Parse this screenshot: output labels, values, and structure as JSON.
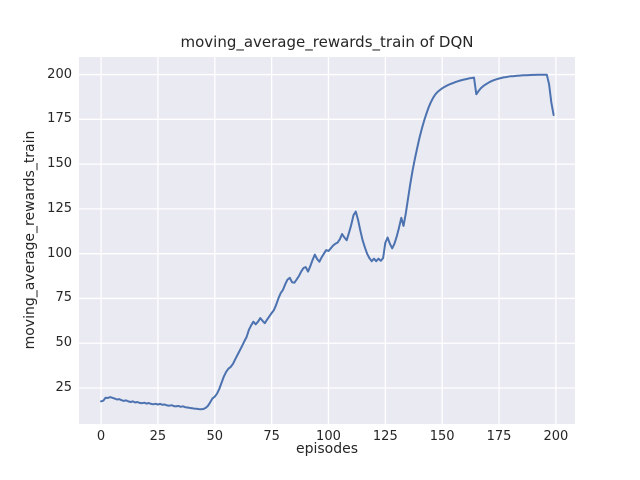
{
  "colors": {
    "figure_bg": "#ffffff",
    "axes_bg": "#eaeaf2",
    "grid": "#ffffff",
    "line": "#4c72b0",
    "text": "#262626"
  },
  "chart_data": {
    "type": "line",
    "title": "moving_average_rewards_train of DQN",
    "xlabel": "episodes",
    "ylabel": "moving_average_rewards_train",
    "legend": "none",
    "grid": true,
    "xticks": [
      0,
      25,
      50,
      75,
      100,
      125,
      150,
      175,
      200
    ],
    "yticks": [
      25,
      50,
      75,
      100,
      125,
      150,
      175,
      200
    ],
    "xlim": [
      -9.7,
      208.4
    ],
    "ylim": [
      4.9,
      209.8
    ],
    "x_start": 0,
    "x_step": 1,
    "series": [
      {
        "name": "moving_average_rewards_train",
        "values": [
          17.6,
          17.9,
          19.6,
          19.4,
          19.9,
          19.5,
          19.1,
          18.6,
          18.8,
          18.2,
          17.8,
          18.1,
          17.5,
          17.2,
          17.5,
          16.9,
          17.2,
          16.7,
          16.5,
          16.8,
          16.3,
          16.6,
          16.1,
          15.9,
          16.2,
          15.8,
          16.1,
          15.6,
          15.8,
          15.3,
          15.1,
          15.4,
          14.9,
          14.7,
          15.0,
          14.5,
          14.8,
          14.3,
          14.1,
          13.9,
          13.7,
          13.5,
          13.4,
          13.2,
          13.1,
          13.3,
          13.9,
          15.0,
          17.0,
          19.2,
          20.2,
          21.8,
          24.5,
          28.0,
          31.5,
          34.0,
          35.8,
          36.8,
          38.5,
          41.0,
          43.5,
          46.0,
          48.5,
          51.0,
          53.5,
          57.5,
          60.0,
          62.0,
          60.5,
          62.0,
          64.0,
          62.5,
          61.2,
          63.2,
          65.0,
          66.8,
          68.5,
          71.5,
          75.0,
          78.0,
          79.8,
          83.0,
          85.5,
          86.5,
          84.0,
          83.8,
          85.5,
          87.5,
          90.0,
          92.0,
          92.5,
          90.0,
          93.0,
          96.5,
          99.5,
          97.0,
          95.5,
          98.0,
          100.0,
          102.0,
          101.5,
          103.0,
          104.5,
          105.5,
          106.2,
          108.0,
          111.0,
          109.0,
          107.5,
          111.5,
          116.0,
          121.5,
          123.5,
          119.0,
          113.0,
          107.5,
          103.5,
          100.0,
          97.5,
          95.8,
          97.2,
          95.8,
          97.2,
          96.0,
          97.5,
          106.0,
          109.0,
          105.5,
          103.0,
          105.5,
          109.5,
          114.5,
          120.0,
          115.5,
          122.5,
          131.0,
          139.0,
          146.5,
          153.0,
          159.0,
          164.5,
          169.5,
          174.0,
          178.0,
          181.5,
          184.5,
          187.0,
          189.0,
          190.3,
          191.4,
          192.3,
          193.1,
          193.8,
          194.4,
          194.9,
          195.4,
          195.9,
          196.3,
          196.7,
          197.0,
          197.3,
          197.6,
          197.9,
          198.1,
          198.3,
          189.0,
          190.8,
          192.3,
          193.5,
          194.4,
          195.2,
          195.9,
          196.5,
          197.0,
          197.4,
          197.8,
          198.1,
          198.4,
          198.6,
          198.8,
          199.0,
          199.1,
          199.2,
          199.3,
          199.4,
          199.5,
          199.6,
          199.65,
          199.7,
          199.75,
          199.8,
          199.82,
          199.85,
          199.88,
          199.9,
          199.9,
          199.9,
          194.5,
          184.5,
          177.4
        ]
      }
    ]
  }
}
